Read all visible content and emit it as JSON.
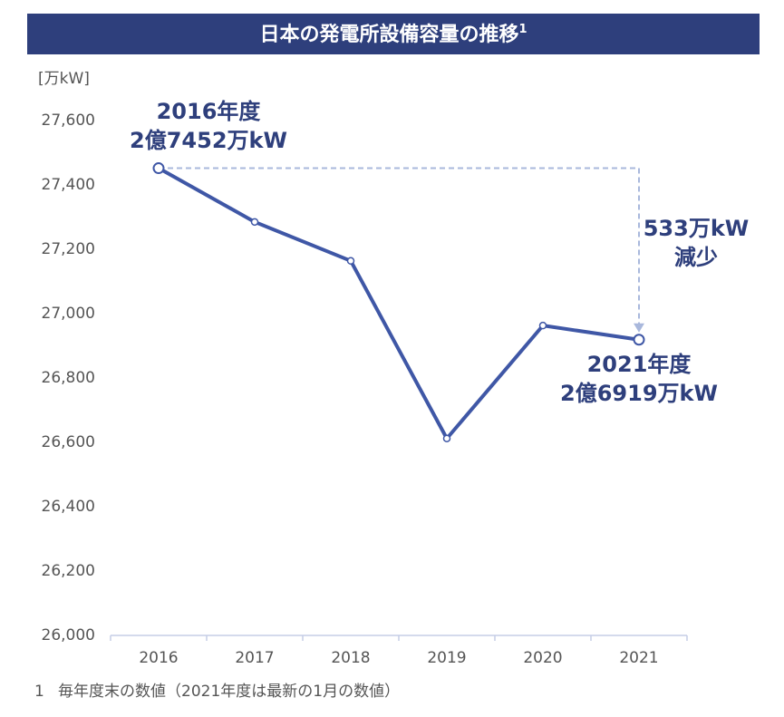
{
  "chart_data": {
    "type": "line",
    "title": "日本の発電所設備容量の推移",
    "title_note": "1",
    "unit_label": "[万kW]",
    "categories": [
      "2016",
      "2017",
      "2018",
      "2019",
      "2020",
      "2021"
    ],
    "series": [
      {
        "name": "発電所設備容量",
        "color": "#3f57a6",
        "values": [
          27452,
          27285,
          27164,
          26612,
          26963,
          26919
        ]
      }
    ],
    "ylim": [
      26000,
      27600
    ],
    "yticks": [
      {
        "value": 26000,
        "label": "26,000"
      },
      {
        "value": 26200,
        "label": "26,200"
      },
      {
        "value": 26400,
        "label": "26,400"
      },
      {
        "value": 26600,
        "label": "26,600"
      },
      {
        "value": 26800,
        "label": "26,800"
      },
      {
        "value": 27000,
        "label": "27,000"
      },
      {
        "value": 27200,
        "label": "27,200"
      },
      {
        "value": 27400,
        "label": "27,400"
      },
      {
        "value": 27600,
        "label": "27,600"
      }
    ],
    "annotations": {
      "start_year": "2016年度",
      "start_value": "2億7452万kW",
      "end_year": "2021年度",
      "end_value": "2億6919万kW",
      "diff_value": "533万kW",
      "diff_text": "減少"
    },
    "footnote": {
      "number": "1",
      "text": "毎年度末の数値（2021年度は最新の1月の数値）"
    }
  }
}
